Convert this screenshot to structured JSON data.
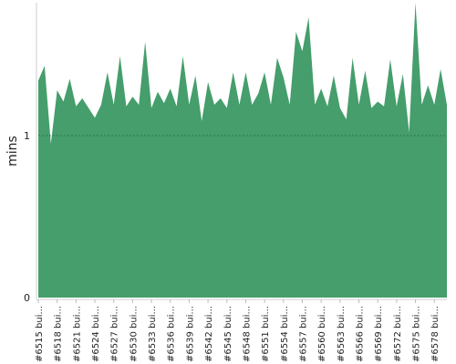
{
  "chart_data": {
    "type": "area",
    "y_label": "mins",
    "categories": [
      "#6515 bui...",
      null,
      null,
      "#6518 bui...",
      null,
      null,
      "#6521 bui...",
      null,
      null,
      "#6524 bui...",
      null,
      null,
      "#6527 bui...",
      null,
      null,
      "#6530 bui...",
      null,
      null,
      "#6533 bui...",
      null,
      null,
      "#6536 bui...",
      null,
      null,
      "#6539 bui...",
      null,
      null,
      "#6542 bui...",
      null,
      null,
      "#6545 bui...",
      null,
      null,
      "#6548 bui...",
      null,
      null,
      "#6551 bui...",
      null,
      null,
      "#6554 bui...",
      null,
      null,
      "#6557 bui...",
      null,
      null,
      "#6560 bui...",
      null,
      null,
      "#6563 bui...",
      null,
      null,
      "#6566 bui...",
      null,
      null,
      "#6569 bui...",
      null,
      null,
      "#6572 bui...",
      null,
      null,
      "#6575 bui...",
      null,
      null,
      "#6578 bui...",
      null,
      null
    ],
    "values": [
      1.34,
      1.43,
      0.95,
      1.28,
      1.21,
      1.35,
      1.18,
      1.23,
      1.17,
      1.11,
      1.19,
      1.39,
      1.19,
      1.49,
      1.18,
      1.24,
      1.19,
      1.58,
      1.17,
      1.27,
      1.2,
      1.29,
      1.18,
      1.49,
      1.19,
      1.37,
      1.09,
      1.33,
      1.19,
      1.23,
      1.17,
      1.39,
      1.19,
      1.39,
      1.19,
      1.26,
      1.39,
      1.19,
      1.48,
      1.36,
      1.19,
      1.64,
      1.52,
      1.73,
      1.19,
      1.29,
      1.18,
      1.37,
      1.17,
      1.1,
      1.48,
      1.19,
      1.4,
      1.17,
      1.21,
      1.18,
      1.47,
      1.18,
      1.38,
      1.02,
      1.82,
      1.19,
      1.31,
      1.19,
      1.41,
      1.19
    ],
    "color": "#459e6c",
    "ylim": [
      0,
      1.82
    ],
    "yticks": [
      0,
      1
    ],
    "grid": true
  }
}
